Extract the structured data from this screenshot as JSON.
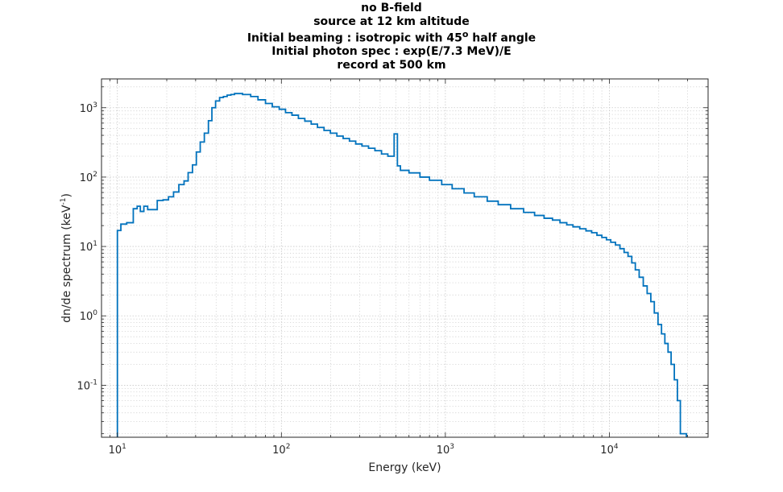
{
  "chart_data": {
    "type": "line",
    "style": "stairs",
    "title_lines": [
      "no B-field",
      "source at 12 km altitude",
      "Initial beaming : isotropic with 45",
      "Initial photon spec : exp(E/7.3 MeV)/E",
      "record at 500 km"
    ],
    "title_superscript": "o",
    "title_line3_suffix": " half angle",
    "xlabel": "Energy (keV)",
    "ylabel_main": "dn/de spectrum (keV",
    "ylabel_sup": "-1",
    "ylabel_end": ")",
    "xscale": "log",
    "yscale": "log",
    "xlim": [
      8,
      40000
    ],
    "ylim": [
      0.0178,
      2600
    ],
    "grid": true,
    "minor_grid": true,
    "x_ticks": [
      {
        "base": "10",
        "exp": "1",
        "value": 10
      },
      {
        "base": "10",
        "exp": "2",
        "value": 100
      },
      {
        "base": "10",
        "exp": "3",
        "value": 1000
      },
      {
        "base": "10",
        "exp": "4",
        "value": 10000
      }
    ],
    "y_ticks": [
      {
        "base": "10",
        "exp": "-1",
        "value": 0.1
      },
      {
        "base": "10",
        "exp": "0",
        "value": 1
      },
      {
        "base": "10",
        "exp": "1",
        "value": 10
      },
      {
        "base": "10",
        "exp": "2",
        "value": 100
      },
      {
        "base": "10",
        "exp": "3",
        "value": 1000
      }
    ],
    "line_color": "#0072BD",
    "series": [
      {
        "x": [
          10,
          10.5,
          11.4,
          12.5,
          13.2,
          13.8,
          14.5,
          15.3,
          16.6,
          17.5,
          19,
          20.5,
          22,
          23.7,
          25.5,
          27,
          28.7,
          30.3,
          32,
          33.9,
          35.9,
          37.7,
          39.7,
          42,
          44.3,
          46.7,
          49.2,
          51.8,
          58,
          65,
          72,
          80,
          88,
          97,
          106,
          116,
          127,
          139,
          152,
          166,
          182,
          199,
          218,
          238,
          260,
          284,
          310,
          340,
          372,
          408,
          446,
          487,
          510,
          532,
          600,
          700,
          800,
          950,
          1100,
          1300,
          1500,
          1800,
          2100,
          2500,
          3000,
          3500,
          4000,
          4500,
          5000,
          5500,
          6000,
          6600,
          7200,
          7800,
          8400,
          9000,
          9600,
          10200,
          10900,
          11600,
          12300,
          13000,
          13700,
          14400,
          15200,
          16100,
          17000,
          17900,
          18800,
          19800,
          20800,
          21800,
          22800,
          23800,
          24900,
          26000,
          27100,
          28300,
          29500
        ],
        "y": [
          17,
          21,
          22,
          35,
          38,
          32,
          38,
          34,
          34,
          46,
          47,
          52,
          61,
          78,
          88,
          116,
          150,
          230,
          320,
          430,
          650,
          1000,
          1250,
          1400,
          1450,
          1520,
          1550,
          1600,
          1550,
          1450,
          1300,
          1150,
          1030,
          950,
          850,
          780,
          700,
          640,
          580,
          520,
          470,
          430,
          390,
          360,
          330,
          300,
          280,
          260,
          240,
          215,
          200,
          420,
          145,
          125,
          115,
          100,
          90,
          78,
          68,
          59,
          52,
          45,
          40,
          35,
          31,
          28,
          25.5,
          24,
          22,
          20.5,
          19.2,
          18,
          16.8,
          15.8,
          14.5,
          13.5,
          12.5,
          11.5,
          10.5,
          9.3,
          8.2,
          7.2,
          5.8,
          4.6,
          3.6,
          2.7,
          2.1,
          1.6,
          1.1,
          0.75,
          0.55,
          0.4,
          0.3,
          0.2,
          0.12,
          0.06,
          0.02,
          0.02,
          0.0178
        ]
      }
    ]
  }
}
